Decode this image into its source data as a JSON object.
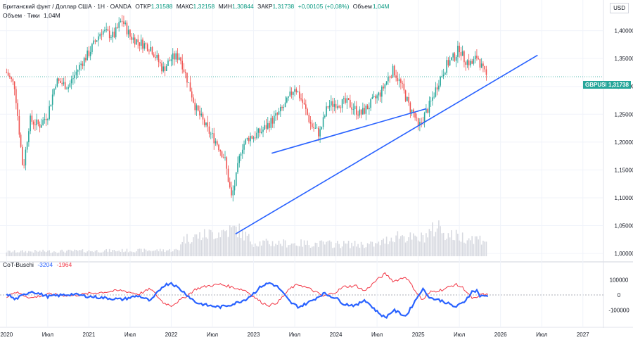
{
  "header": {
    "symbol": "Британский фунт / Доллар США · 1Н · OANDA",
    "open_label": "ОТКР",
    "open": "1,31588",
    "high_label": "МАКС",
    "high": "1,32158",
    "low_label": "МИН",
    "low": "1,30844",
    "close_label": "ЗАКР",
    "close": "1,31738",
    "change": "+0,00105 (+0,08%)",
    "volume_label": "Объем",
    "volume": "1,04M",
    "ticks_label": "Объем · Тики",
    "ticks": "1,04M"
  },
  "currency": "USD",
  "price_badge": {
    "symbol": "GBPUSD",
    "value": "1,31738"
  },
  "indicator": {
    "name": "CoT-Buschi",
    "v1": "-3204",
    "v2": "-1964"
  },
  "colors": {
    "up": "#26a69a",
    "down": "#ef5350",
    "trend": "#2962ff",
    "cot_blue": "#2962ff",
    "cot_red": "#f23645",
    "volume": "#d7d9e0",
    "grid": "#f0f3fa",
    "price_line": "#26a69a",
    "badge_bg": "#26a69a"
  },
  "chart_data": [
    {
      "type": "candlestick",
      "title": "Британский фунт / Доллар США · 1Н · OANDA",
      "ylim": [
        0.99,
        1.445
      ],
      "y_ticks": [
        "1,00000",
        "1,05000",
        "1,10000",
        "1,15000",
        "1,20000",
        "1,25000",
        "1,30000",
        "1,35000",
        "1,40000"
      ],
      "x_labels": [
        "2020",
        "Июл",
        "2021",
        "Июл",
        "2022",
        "Июл",
        "2023",
        "Июл",
        "2024",
        "Июл",
        "2025",
        "Июл",
        "2026",
        "Июл",
        "2027"
      ],
      "price_path": [
        [
          2020.0,
          1.325
        ],
        [
          2020.1,
          1.3
        ],
        [
          2020.2,
          1.15
        ],
        [
          2020.28,
          1.24
        ],
        [
          2020.4,
          1.23
        ],
        [
          2020.5,
          1.25
        ],
        [
          2020.6,
          1.31
        ],
        [
          2020.75,
          1.3
        ],
        [
          2020.9,
          1.34
        ],
        [
          2021.0,
          1.36
        ],
        [
          2021.15,
          1.4
        ],
        [
          2021.3,
          1.39
        ],
        [
          2021.4,
          1.42
        ],
        [
          2021.5,
          1.39
        ],
        [
          2021.6,
          1.38
        ],
        [
          2021.75,
          1.37
        ],
        [
          2021.9,
          1.33
        ],
        [
          2022.0,
          1.35
        ],
        [
          2022.1,
          1.355
        ],
        [
          2022.2,
          1.31
        ],
        [
          2022.3,
          1.26
        ],
        [
          2022.45,
          1.22
        ],
        [
          2022.55,
          1.2
        ],
        [
          2022.65,
          1.17
        ],
        [
          2022.73,
          1.1
        ],
        [
          2022.78,
          1.13
        ],
        [
          2022.85,
          1.19
        ],
        [
          2022.95,
          1.21
        ],
        [
          2023.0,
          1.21
        ],
        [
          2023.1,
          1.22
        ],
        [
          2023.2,
          1.235
        ],
        [
          2023.3,
          1.25
        ],
        [
          2023.4,
          1.27
        ],
        [
          2023.5,
          1.3
        ],
        [
          2023.6,
          1.27
        ],
        [
          2023.7,
          1.23
        ],
        [
          2023.8,
          1.215
        ],
        [
          2023.9,
          1.265
        ],
        [
          2024.0,
          1.27
        ],
        [
          2024.15,
          1.27
        ],
        [
          2024.3,
          1.25
        ],
        [
          2024.4,
          1.265
        ],
        [
          2024.55,
          1.29
        ],
        [
          2024.65,
          1.32
        ],
        [
          2024.7,
          1.33
        ],
        [
          2024.8,
          1.3
        ],
        [
          2024.9,
          1.26
        ],
        [
          2024.95,
          1.25
        ],
        [
          2025.0,
          1.225
        ],
        [
          2025.05,
          1.24
        ],
        [
          2025.15,
          1.27
        ],
        [
          2025.25,
          1.31
        ],
        [
          2025.35,
          1.34
        ],
        [
          2025.45,
          1.355
        ],
        [
          2025.5,
          1.37
        ],
        [
          2025.55,
          1.35
        ],
        [
          2025.65,
          1.34
        ],
        [
          2025.72,
          1.355
        ],
        [
          2025.78,
          1.33
        ],
        [
          2025.83,
          1.317
        ]
      ],
      "trendlines": [
        {
          "from": [
            2022.78,
            1.035
          ],
          "to": [
            2026.45,
            1.356
          ]
        },
        {
          "from": [
            2023.22,
            1.18
          ],
          "to": [
            2025.1,
            1.26
          ]
        }
      ],
      "last_price": 1.31738
    },
    {
      "type": "bar",
      "title": "Объем · Тики",
      "series": [
        {
          "name": "Объем",
          "value_last": "1,04M"
        }
      ],
      "profile": [
        [
          2020.0,
          0.15
        ],
        [
          2022.1,
          0.2
        ],
        [
          2022.12,
          0.55
        ],
        [
          2022.8,
          0.9
        ],
        [
          2023.0,
          0.45
        ],
        [
          2023.5,
          0.42
        ],
        [
          2024.0,
          0.4
        ],
        [
          2024.5,
          0.38
        ],
        [
          2024.75,
          0.7
        ],
        [
          2025.0,
          0.55
        ],
        [
          2025.1,
          0.7
        ],
        [
          2025.25,
          1.0
        ],
        [
          2025.35,
          0.7
        ],
        [
          2025.8,
          0.55
        ]
      ]
    },
    {
      "type": "line",
      "title": "CoT-Buschi",
      "ylim": [
        -190000,
        190000
      ],
      "y_ticks": [
        "100000",
        "0",
        "-100000"
      ],
      "series": [
        {
          "name": "-3204",
          "color": "#2962ff",
          "points": [
            [
              2020.0,
              10000
            ],
            [
              2020.1,
              -30000
            ],
            [
              2020.3,
              25000
            ],
            [
              2020.5,
              -10000
            ],
            [
              2020.8,
              5000
            ],
            [
              2021.0,
              -10000
            ],
            [
              2021.2,
              -20000
            ],
            [
              2021.4,
              -30000
            ],
            [
              2021.6,
              -5000
            ],
            [
              2021.75,
              -40000
            ],
            [
              2021.9,
              60000
            ],
            [
              2022.0,
              80000
            ],
            [
              2022.15,
              20000
            ],
            [
              2022.3,
              -50000
            ],
            [
              2022.45,
              -70000
            ],
            [
              2022.6,
              -80000
            ],
            [
              2022.75,
              -60000
            ],
            [
              2022.9,
              -30000
            ],
            [
              2023.0,
              10000
            ],
            [
              2023.1,
              60000
            ],
            [
              2023.2,
              80000
            ],
            [
              2023.3,
              50000
            ],
            [
              2023.45,
              -50000
            ],
            [
              2023.55,
              -80000
            ],
            [
              2023.7,
              -40000
            ],
            [
              2023.85,
              10000
            ],
            [
              2024.0,
              -20000
            ],
            [
              2024.1,
              -60000
            ],
            [
              2024.25,
              -70000
            ],
            [
              2024.35,
              -30000
            ],
            [
              2024.5,
              -110000
            ],
            [
              2024.6,
              -150000
            ],
            [
              2024.7,
              -100000
            ],
            [
              2024.85,
              -140000
            ],
            [
              2024.95,
              -50000
            ],
            [
              2025.05,
              40000
            ],
            [
              2025.15,
              -20000
            ],
            [
              2025.3,
              -40000
            ],
            [
              2025.45,
              -80000
            ],
            [
              2025.55,
              -50000
            ],
            [
              2025.65,
              20000
            ],
            [
              2025.72,
              30000
            ],
            [
              2025.75,
              -10000
            ],
            [
              2025.85,
              -3204
            ]
          ]
        },
        {
          "name": "-1964",
          "color": "#f23645",
          "points": [
            [
              2020.0,
              -10000
            ],
            [
              2020.1,
              20000
            ],
            [
              2020.3,
              -20000
            ],
            [
              2020.5,
              5000
            ],
            [
              2020.8,
              -5000
            ],
            [
              2021.0,
              10000
            ],
            [
              2021.2,
              20000
            ],
            [
              2021.4,
              30000
            ],
            [
              2021.6,
              5000
            ],
            [
              2021.75,
              40000
            ],
            [
              2021.9,
              -50000
            ],
            [
              2022.0,
              -70000
            ],
            [
              2022.15,
              -20000
            ],
            [
              2022.3,
              40000
            ],
            [
              2022.45,
              60000
            ],
            [
              2022.6,
              70000
            ],
            [
              2022.75,
              50000
            ],
            [
              2022.9,
              30000
            ],
            [
              2023.0,
              -10000
            ],
            [
              2023.1,
              -50000
            ],
            [
              2023.2,
              -70000
            ],
            [
              2023.3,
              -45000
            ],
            [
              2023.45,
              45000
            ],
            [
              2023.55,
              70000
            ],
            [
              2023.7,
              35000
            ],
            [
              2023.85,
              -10000
            ],
            [
              2024.0,
              20000
            ],
            [
              2024.1,
              55000
            ],
            [
              2024.25,
              60000
            ],
            [
              2024.35,
              25000
            ],
            [
              2024.5,
              100000
            ],
            [
              2024.6,
              140000
            ],
            [
              2024.7,
              90000
            ],
            [
              2024.85,
              120000
            ],
            [
              2024.95,
              40000
            ],
            [
              2025.05,
              -35000
            ],
            [
              2025.15,
              20000
            ],
            [
              2025.3,
              35000
            ],
            [
              2025.45,
              70000
            ],
            [
              2025.55,
              45000
            ],
            [
              2025.65,
              -20000
            ],
            [
              2025.72,
              -25000
            ],
            [
              2025.75,
              5000
            ],
            [
              2025.85,
              -1964
            ]
          ]
        }
      ]
    }
  ]
}
